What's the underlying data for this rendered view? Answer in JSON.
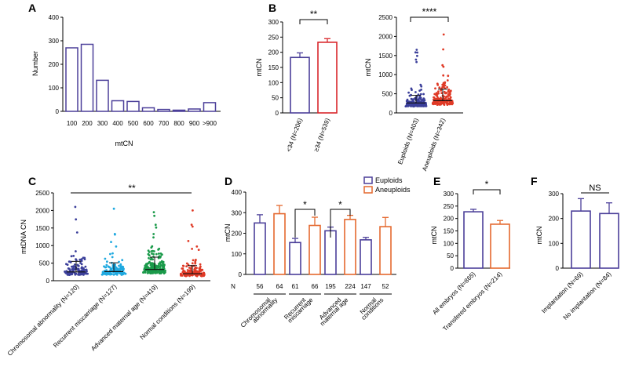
{
  "chart_data": [
    {
      "panel": "A",
      "type": "bar",
      "xlabel": "mtCN",
      "ylabel": "Number",
      "ylim": [
        0,
        400
      ],
      "yticks": [
        0,
        100,
        200,
        300,
        400
      ],
      "categories": [
        "100",
        "200",
        "300",
        "400",
        "500",
        "600",
        "700",
        "800",
        "900",
        ">900"
      ],
      "values": [
        270,
        285,
        132,
        45,
        42,
        15,
        8,
        5,
        10,
        37
      ]
    },
    {
      "panel": "B",
      "type": "bar",
      "ylabel": "mtCN",
      "ylim": [
        0,
        300
      ],
      "yticks": [
        0,
        50,
        100,
        150,
        200,
        250,
        300
      ],
      "categories": [
        "<34 (N=206)",
        "≥34 (N=539)"
      ],
      "values": [
        183,
        233
      ],
      "errors": [
        15,
        12
      ],
      "significance": "**"
    },
    {
      "panel": "B2",
      "type": "scatter",
      "ylabel": "mtCN",
      "ylim": [
        0,
        2500
      ],
      "yticks": [
        0,
        500,
        1000,
        1500,
        2000,
        2500
      ],
      "categories": [
        "Euploids (N=403)",
        "Aneuploids (N=342)"
      ],
      "means": [
        260,
        320
      ],
      "sd": [
        200,
        300
      ],
      "max": [
        1650,
        2050
      ],
      "significance": "****"
    },
    {
      "panel": "C",
      "type": "scatter",
      "ylabel": "mtDNA CN",
      "ylim": [
        0,
        2500
      ],
      "yticks": [
        0,
        500,
        1000,
        1500,
        2000,
        2500
      ],
      "categories": [
        "Chromosomal abnormality (N=120)",
        "Recurrent miscarriage (N=127)",
        "Advanced maternal age (N=419)",
        "Normal conditions (N=199)"
      ],
      "means": [
        250,
        260,
        320,
        200
      ],
      "sd": [
        300,
        250,
        350,
        230
      ],
      "max": [
        2100,
        2050,
        1950,
        2000
      ],
      "significance": "**"
    },
    {
      "panel": "D",
      "type": "bar",
      "ylabel": "mtCN",
      "ylim": [
        0,
        400
      ],
      "yticks": [
        0,
        100,
        200,
        300,
        400
      ],
      "categories": [
        "Chromosomal abnormality",
        "Recurrent miscarriage",
        "Advanced maternal age",
        "Normal conditions"
      ],
      "n_label": "N",
      "n_values": [
        [
          "56",
          "64"
        ],
        [
          "61",
          "66"
        ],
        [
          "195",
          "224"
        ],
        [
          "147",
          "52"
        ]
      ],
      "series": [
        {
          "name": "Euploids",
          "values": [
            250,
            155,
            212,
            168
          ],
          "errors": [
            40,
            20,
            18,
            12
          ]
        },
        {
          "name": "Aneuploids",
          "values": [
            295,
            238,
            267,
            232
          ],
          "errors": [
            40,
            40,
            20,
            45
          ]
        }
      ],
      "significance": [
        {
          "group": 1,
          "text": "*"
        },
        {
          "group": 2,
          "text": "*"
        }
      ]
    },
    {
      "panel": "E",
      "type": "bar",
      "ylabel": "mtCN",
      "ylim": [
        0,
        300
      ],
      "yticks": [
        0,
        50,
        100,
        150,
        200,
        250,
        300
      ],
      "categories": [
        "All embryos (N=865)",
        "Transfered embryos (N=214)"
      ],
      "values": [
        227,
        177
      ],
      "errors": [
        10,
        15
      ],
      "significance": "*"
    },
    {
      "panel": "F",
      "type": "bar",
      "ylabel": "mtCN",
      "ylim": [
        0,
        300
      ],
      "yticks": [
        0,
        100,
        200,
        300
      ],
      "categories": [
        "Implantation (N=69)",
        "No implantation (N=84)"
      ],
      "values": [
        230,
        220
      ],
      "errors": [
        50,
        43
      ],
      "significance": "NS"
    }
  ],
  "colors": {
    "blue": "#4b3f99",
    "red": "#d9262b",
    "orange": "#e4692f",
    "scatter_blue": "#3b3f9a",
    "scatter_red": "#e03a26",
    "scatter_cyan": "#1fa9e0",
    "scatter_green": "#1a9a4a",
    "scatter_orange": "#e4692f"
  }
}
